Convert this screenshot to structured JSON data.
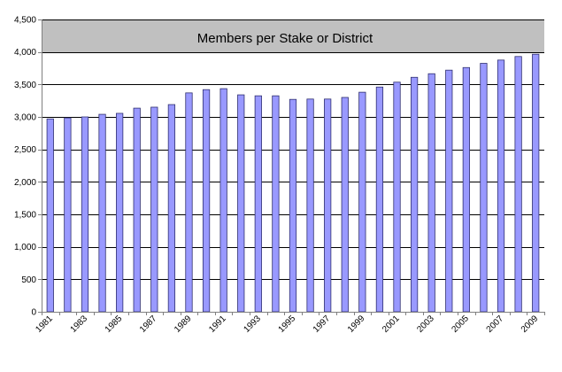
{
  "chart_data": {
    "type": "bar",
    "title": "Members per Stake or District",
    "xlabel": "",
    "ylabel": "",
    "ylim": [
      0,
      4500
    ],
    "y_ticks": [
      0,
      500,
      1000,
      1500,
      2000,
      2500,
      3000,
      3500,
      4000,
      4500
    ],
    "y_tick_labels": [
      "0",
      "500",
      "1,000",
      "1,500",
      "2,000",
      "2,500",
      "3,000",
      "3,500",
      "4,000",
      "4,500"
    ],
    "grid": true,
    "legend": "none",
    "categories": [
      "1981",
      "1982",
      "1983",
      "1984",
      "1985",
      "1986",
      "1987",
      "1988",
      "1989",
      "1990",
      "1991",
      "1992",
      "1993",
      "1994",
      "1995",
      "1996",
      "1997",
      "1998",
      "1999",
      "2000",
      "2001",
      "2002",
      "2003",
      "2004",
      "2005",
      "2006",
      "2007",
      "2008",
      "2009"
    ],
    "x_tick_labels": [
      "1981",
      "1983",
      "1985",
      "1987",
      "1989",
      "1991",
      "1993",
      "1995",
      "1997",
      "1999",
      "2001",
      "2003",
      "2005",
      "2007",
      "2009"
    ],
    "values": [
      2970,
      2985,
      3000,
      3040,
      3055,
      3135,
      3150,
      3190,
      3370,
      3420,
      3435,
      3340,
      3325,
      3325,
      3270,
      3275,
      3275,
      3300,
      3380,
      3460,
      3535,
      3610,
      3665,
      3720,
      3760,
      3825,
      3875,
      3930,
      3965
    ],
    "colors": {
      "bar_fill": "#9999ff",
      "bar_stroke": "#2f2f6f",
      "plot_background": "#ffffff",
      "title_band": "#c0c0c0",
      "grid": "#000000",
      "axis": "#808080"
    }
  }
}
